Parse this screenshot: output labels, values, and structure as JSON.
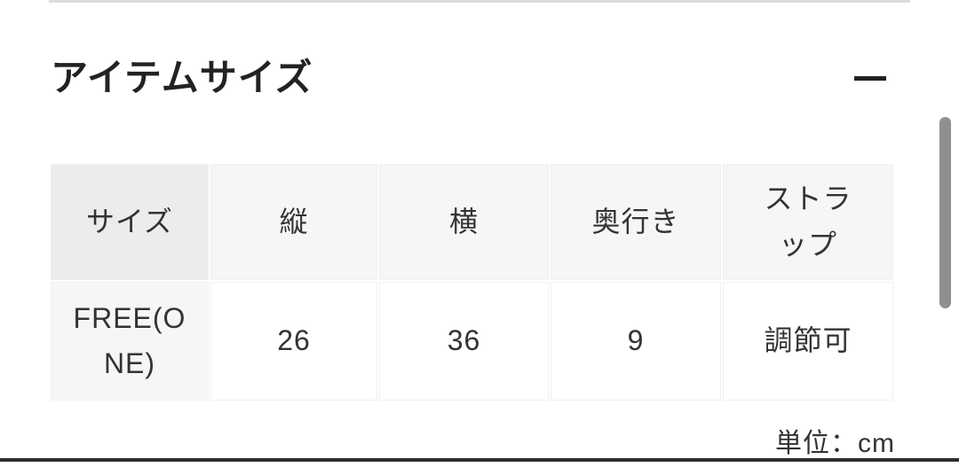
{
  "section": {
    "title": "アイテムサイズ",
    "collapse_icon": "minus"
  },
  "size_table": {
    "columns": [
      "サイズ",
      "縦",
      "横",
      "奥行き",
      "ストラップ"
    ],
    "rows": [
      {
        "size": "FREE(ONE)",
        "tate": "26",
        "yoko": "36",
        "depth": "9",
        "strap": "調節可"
      }
    ],
    "unit_note": "単位：cm"
  },
  "colors": {
    "top_divider": "#dcdcdc",
    "bottom_bar": "#2d2d2d",
    "header_cell_bg": "#f6f6f6",
    "corner_cell_bg": "#ececec",
    "cell_border": "#f1f1f1",
    "text": "#333333",
    "title_text": "#222222",
    "scrollbar_thumb": "#8f8f8f"
  }
}
